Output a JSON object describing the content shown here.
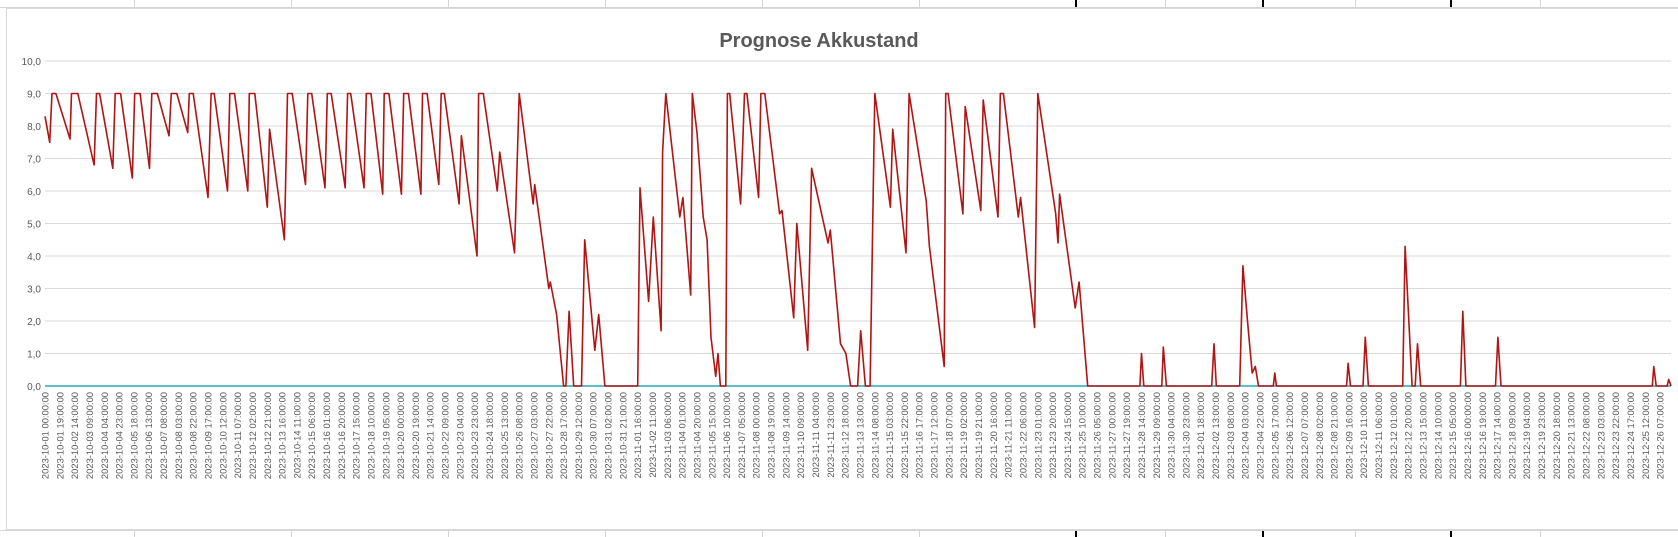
{
  "chart_data": {
    "type": "line",
    "title": "Prognose Akkustand",
    "xlabel": "",
    "ylabel": "",
    "ylim": [
      0,
      10
    ],
    "grid": true,
    "legend": "none",
    "y_ticks": [
      "10,0",
      "9,0",
      "8,0",
      "7,0",
      "6,0",
      "5,0",
      "4,0",
      "3,0",
      "2,0",
      "1,0",
      "0,0"
    ],
    "x_ticks": [
      "2023-10-01 00:00:00",
      "2023-10-01 19:00:00",
      "2023-10-02 14:00:00",
      "2023-10-03 09:00:00",
      "2023-10-04 04:00:00",
      "2023-10-04 23:00:00",
      "2023-10-05 18:00:00",
      "2023-10-06 13:00:00",
      "2023-10-07 08:00:00",
      "2023-10-08 03:00:00",
      "2023-10-08 22:00:00",
      "2023-10-09 17:00:00",
      "2023-10-10 12:00:00",
      "2023-10-11 07:00:00",
      "2023-10-12 02:00:00",
      "2023-10-12 21:00:00",
      "2023-10-13 16:00:00",
      "2023-10-14 11:00:00",
      "2023-10-15 06:00:00",
      "2023-10-16 01:00:00",
      "2023-10-16 20:00:00",
      "2023-10-17 15:00:00",
      "2023-10-18 10:00:00",
      "2023-10-19 05:00:00",
      "2023-10-20 00:00:00",
      "2023-10-20 19:00:00",
      "2023-10-21 14:00:00",
      "2023-10-22 09:00:00",
      "2023-10-23 04:00:00",
      "2023-10-23 23:00:00",
      "2023-10-24 18:00:00",
      "2023-10-25 13:00:00",
      "2023-10-26 08:00:00",
      "2023-10-27 03:00:00",
      "2023-10-27 22:00:00",
      "2023-10-28 17:00:00",
      "2023-10-29 12:00:00",
      "2023-10-30 07:00:00",
      "2023-10-31 02:00:00",
      "2023-10-31 21:00:00",
      "2023-11-01 16:00:00",
      "2023-11-02 11:00:00",
      "2023-11-03 06:00:00",
      "2023-11-04 01:00:00",
      "2023-11-04 20:00:00",
      "2023-11-05 15:00:00",
      "2023-11-06 10:00:00",
      "2023-11-07 05:00:00",
      "2023-11-08 00:00:00",
      "2023-11-08 19:00:00",
      "2023-11-09 14:00:00",
      "2023-11-10 09:00:00",
      "2023-11-11 04:00:00",
      "2023-11-11 23:00:00",
      "2023-11-12 18:00:00",
      "2023-11-13 13:00:00",
      "2023-11-14 08:00:00",
      "2023-11-15 03:00:00",
      "2023-11-15 22:00:00",
      "2023-11-16 17:00:00",
      "2023-11-17 12:00:00",
      "2023-11-18 07:00:00",
      "2023-11-19 02:00:00",
      "2023-11-19 21:00:00",
      "2023-11-20 16:00:00",
      "2023-11-21 11:00:00",
      "2023-11-22 06:00:00",
      "2023-11-23 01:00:00",
      "2023-11-23 20:00:00",
      "2023-11-24 15:00:00",
      "2023-11-25 10:00:00",
      "2023-11-26 05:00:00",
      "2023-11-27 00:00:00",
      "2023-11-27 19:00:00",
      "2023-11-28 14:00:00",
      "2023-11-29 09:00:00",
      "2023-11-30 04:00:00",
      "2023-11-30 23:00:00",
      "2023-12-01 18:00:00",
      "2023-12-02 13:00:00",
      "2023-12-03 08:00:00",
      "2023-12-04 03:00:00",
      "2023-12-04 22:00:00",
      "2023-12-05 17:00:00",
      "2023-12-06 12:00:00",
      "2023-12-07 07:00:00",
      "2023-12-08 02:00:00",
      "2023-12-08 21:00:00",
      "2023-12-09 16:00:00",
      "2023-12-10 11:00:00",
      "2023-12-11 06:00:00",
      "2023-12-12 01:00:00",
      "2023-12-12 20:00:00",
      "2023-12-13 15:00:00",
      "2023-12-14 10:00:00",
      "2023-12-15 05:00:00",
      "2023-12-16 00:00:00",
      "2023-12-16 19:00:00",
      "2023-12-17 14:00:00",
      "2023-12-18 09:00:00",
      "2023-12-19 04:00:00",
      "2023-12-19 23:00:00",
      "2023-12-20 18:00:00",
      "2023-12-21 13:00:00",
      "2023-12-22 08:00:00",
      "2023-12-23 03:00:00",
      "2023-12-23 22:00:00",
      "2023-12-24 17:00:00",
      "2023-12-25 12:00:00",
      "2023-12-26 07:00:00"
    ],
    "x_range": [
      "2023-10-01 00:00:00",
      "2023-12-26 21:00:00"
    ],
    "x_step_hours": 1,
    "series": [
      {
        "color": "#b01414",
        "description_points": [
          [
            "2023-10-01 00:00",
            8.3
          ],
          [
            "2023-10-01 06:00",
            7.5
          ],
          [
            "2023-10-01 09:00",
            9.0
          ],
          [
            "2023-10-01 14:00",
            9.0
          ],
          [
            "2023-10-02 08:00",
            7.6
          ],
          [
            "2023-10-02 10:00",
            9.0
          ],
          [
            "2023-10-02 18:00",
            9.0
          ],
          [
            "2023-10-03 15:00",
            6.8
          ],
          [
            "2023-10-03 18:00",
            9.0
          ],
          [
            "2023-10-03 22:00",
            9.0
          ],
          [
            "2023-10-04 15:00",
            6.7
          ],
          [
            "2023-10-04 18:00",
            9.0
          ],
          [
            "2023-10-05 01:00",
            9.0
          ],
          [
            "2023-10-05 16:00",
            6.4
          ],
          [
            "2023-10-05 19:00",
            9.0
          ],
          [
            "2023-10-06 02:00",
            9.0
          ],
          [
            "2023-10-06 14:00",
            6.7
          ],
          [
            "2023-10-06 17:00",
            9.0
          ],
          [
            "2023-10-07 00:00",
            9.0
          ],
          [
            "2023-10-07 15:00",
            7.7
          ],
          [
            "2023-10-07 18:00",
            9.0
          ],
          [
            "2023-10-08 01:00",
            9.0
          ],
          [
            "2023-10-08 15:00",
            7.8
          ],
          [
            "2023-10-08 17:00",
            9.0
          ],
          [
            "2023-10-08 22:00",
            9.0
          ],
          [
            "2023-10-09 17:00",
            5.8
          ],
          [
            "2023-10-09 21:00",
            9.0
          ],
          [
            "2023-10-10 01:00",
            9.0
          ],
          [
            "2023-10-10 18:00",
            6.0
          ],
          [
            "2023-10-10 21:00",
            9.0
          ],
          [
            "2023-10-11 03:00",
            9.0
          ],
          [
            "2023-10-11 20:00",
            6.0
          ],
          [
            "2023-10-11 22:00",
            9.0
          ],
          [
            "2023-10-12 05:00",
            9.0
          ],
          [
            "2023-10-12 21:00",
            5.5
          ],
          [
            "2023-10-13 00:00",
            7.9
          ],
          [
            "2023-10-13 19:00",
            4.5
          ],
          [
            "2023-10-13 23:00",
            9.0
          ],
          [
            "2023-10-14 05:00",
            9.0
          ],
          [
            "2023-10-14 22:00",
            6.2
          ],
          [
            "2023-10-15 01:00",
            9.0
          ],
          [
            "2023-10-15 06:00",
            9.0
          ],
          [
            "2023-10-15 23:00",
            6.1
          ],
          [
            "2023-10-16 02:00",
            9.0
          ],
          [
            "2023-10-16 07:00",
            9.0
          ],
          [
            "2023-10-17 01:00",
            6.1
          ],
          [
            "2023-10-17 04:00",
            9.0
          ],
          [
            "2023-10-17 08:00",
            9.0
          ],
          [
            "2023-10-18 01:00",
            6.1
          ],
          [
            "2023-10-18 04:00",
            9.0
          ],
          [
            "2023-10-18 10:00",
            9.0
          ],
          [
            "2023-10-19 01:00",
            5.9
          ],
          [
            "2023-10-19 03:00",
            9.0
          ],
          [
            "2023-10-19 09:00",
            9.0
          ],
          [
            "2023-10-20 01:00",
            5.9
          ],
          [
            "2023-10-20 04:00",
            9.0
          ],
          [
            "2023-10-20 10:00",
            9.0
          ],
          [
            "2023-10-21 02:00",
            5.9
          ],
          [
            "2023-10-21 04:00",
            9.0
          ],
          [
            "2023-10-21 10:00",
            9.0
          ],
          [
            "2023-10-22 01:00",
            6.2
          ],
          [
            "2023-10-22 04:00",
            9.0
          ],
          [
            "2023-10-22 08:00",
            9.0
          ],
          [
            "2023-10-23 03:00",
            5.6
          ],
          [
            "2023-10-23 06:00",
            7.7
          ],
          [
            "2023-10-24 02:00",
            4.0
          ],
          [
            "2023-10-24 04:00",
            9.0
          ],
          [
            "2023-10-24 10:00",
            9.0
          ],
          [
            "2023-10-25 04:00",
            6.0
          ],
          [
            "2023-10-25 07:00",
            7.2
          ],
          [
            "2023-10-26 02:00",
            4.1
          ],
          [
            "2023-10-26 08:00",
            9.0
          ],
          [
            "2023-10-27 02:00",
            5.6
          ],
          [
            "2023-10-27 04:00",
            6.2
          ],
          [
            "2023-10-27 22:00",
            3.0
          ],
          [
            "2023-10-28 00:00",
            3.2
          ],
          [
            "2023-10-28 08:00",
            2.2
          ],
          [
            "2023-10-28 17:00",
            0.0
          ],
          [
            "2023-10-28 20:00",
            0.0
          ],
          [
            "2023-10-29 00:00",
            2.3
          ],
          [
            "2023-10-29 06:00",
            0.0
          ],
          [
            "2023-10-29 16:00",
            0.0
          ],
          [
            "2023-10-29 20:00",
            4.5
          ],
          [
            "2023-10-30 09:00",
            1.1
          ],
          [
            "2023-10-30 14:00",
            2.2
          ],
          [
            "2023-10-30 22:00",
            0.0
          ],
          [
            "2023-10-31 00:00",
            0.0
          ],
          [
            "2023-11-01 16:00",
            0.0
          ],
          [
            "2023-11-01 19:00",
            6.1
          ],
          [
            "2023-11-02 06:00",
            2.6
          ],
          [
            "2023-11-02 12:00",
            5.2
          ],
          [
            "2023-11-02 22:00",
            1.7
          ],
          [
            "2023-11-03 00:00",
            7.2
          ],
          [
            "2023-11-03 04:00",
            9.0
          ],
          [
            "2023-11-03 22:00",
            5.2
          ],
          [
            "2023-11-04 02:00",
            5.8
          ],
          [
            "2023-11-04 12:00",
            2.8
          ],
          [
            "2023-11-04 14:00",
            9.0
          ],
          [
            "2023-11-04 20:00",
            7.8
          ],
          [
            "2023-11-05 04:00",
            5.2
          ],
          [
            "2023-11-05 09:00",
            4.5
          ],
          [
            "2023-11-05 14:00",
            1.5
          ],
          [
            "2023-11-05 20:00",
            0.3
          ],
          [
            "2023-11-05 23:00",
            1.0
          ],
          [
            "2023-11-06 02:00",
            0.0
          ],
          [
            "2023-11-06 09:00",
            0.0
          ],
          [
            "2023-11-06 11:00",
            9.0
          ],
          [
            "2023-11-06 14:00",
            9.0
          ],
          [
            "2023-11-07 04:00",
            5.6
          ],
          [
            "2023-11-07 09:00",
            9.0
          ],
          [
            "2023-11-07 12:00",
            9.0
          ],
          [
            "2023-11-08 03:00",
            5.8
          ],
          [
            "2023-11-08 06:00",
            9.0
          ],
          [
            "2023-11-08 11:00",
            9.0
          ],
          [
            "2023-11-09 06:00",
            5.3
          ],
          [
            "2023-11-09 09:00",
            5.4
          ],
          [
            "2023-11-10 00:00",
            2.1
          ],
          [
            "2023-11-10 04:00",
            5.0
          ],
          [
            "2023-11-10 18:00",
            1.1
          ],
          [
            "2023-11-10 23:00",
            6.7
          ],
          [
            "2023-11-11 20:00",
            4.4
          ],
          [
            "2023-11-11 23:00",
            4.8
          ],
          [
            "2023-11-12 12:00",
            1.3
          ],
          [
            "2023-11-12 19:00",
            1.0
          ],
          [
            "2023-11-13 01:00",
            0.0
          ],
          [
            "2023-11-13 10:00",
            0.0
          ],
          [
            "2023-11-13 14:00",
            1.7
          ],
          [
            "2023-11-13 20:00",
            0.0
          ],
          [
            "2023-11-14 02:00",
            0.0
          ],
          [
            "2023-11-14 08:00",
            9.0
          ],
          [
            "2023-11-15 04:00",
            5.5
          ],
          [
            "2023-11-15 07:00",
            7.9
          ],
          [
            "2023-11-16 00:00",
            4.1
          ],
          [
            "2023-11-16 04:00",
            9.0
          ],
          [
            "2023-11-17 02:00",
            5.7
          ],
          [
            "2023-11-17 06:00",
            4.3
          ],
          [
            "2023-11-18 01:00",
            0.6
          ],
          [
            "2023-11-18 03:00",
            9.0
          ],
          [
            "2023-11-18 06:00",
            9.0
          ],
          [
            "2023-11-19 01:00",
            5.3
          ],
          [
            "2023-11-19 04:00",
            8.6
          ],
          [
            "2023-11-20 00:00",
            5.4
          ],
          [
            "2023-11-20 03:00",
            8.8
          ],
          [
            "2023-11-20 22:00",
            5.2
          ],
          [
            "2023-11-21 01:00",
            9.0
          ],
          [
            "2023-11-21 05:00",
            9.0
          ],
          [
            "2023-11-22 00:00",
            5.2
          ],
          [
            "2023-11-22 03:00",
            5.8
          ],
          [
            "2023-11-22 21:00",
            1.8
          ],
          [
            "2023-11-23 01:00",
            9.0
          ],
          [
            "2023-11-24 00:00",
            5.3
          ],
          [
            "2023-11-24 03:00",
            4.4
          ],
          [
            "2023-11-24 05:00",
            5.9
          ],
          [
            "2023-11-25 01:00",
            2.4
          ],
          [
            "2023-11-25 06:00",
            3.2
          ],
          [
            "2023-11-25 17:00",
            0.0
          ],
          [
            "2023-11-28 12:00",
            0.0
          ],
          [
            "2023-11-28 14:00",
            1.0
          ],
          [
            "2023-11-28 17:00",
            0.0
          ],
          [
            "2023-11-29 16:00",
            0.0
          ],
          [
            "2023-11-29 18:00",
            1.2
          ],
          [
            "2023-11-29 22:00",
            0.0
          ],
          [
            "2023-12-02 08:00",
            0.0
          ],
          [
            "2023-12-02 11:00",
            1.3
          ],
          [
            "2023-12-02 14:00",
            0.0
          ],
          [
            "2023-12-03 20:00",
            0.0
          ],
          [
            "2023-12-04 00:00",
            3.7
          ],
          [
            "2023-12-04 06:00",
            2.0
          ],
          [
            "2023-12-04 12:00",
            0.4
          ],
          [
            "2023-12-04 16:00",
            0.6
          ],
          [
            "2023-12-04 20:00",
            0.0
          ],
          [
            "2023-12-05 15:00",
            0.0
          ],
          [
            "2023-12-05 17:00",
            0.4
          ],
          [
            "2023-12-05 19:00",
            0.0
          ],
          [
            "2023-12-09 13:00",
            0.0
          ],
          [
            "2023-12-09 15:00",
            0.7
          ],
          [
            "2023-12-09 18:00",
            0.0
          ],
          [
            "2023-12-10 10:00",
            0.0
          ],
          [
            "2023-12-10 13:00",
            1.5
          ],
          [
            "2023-12-10 17:00",
            0.0
          ],
          [
            "2023-12-12 13:00",
            0.0
          ],
          [
            "2023-12-12 16:00",
            4.3
          ],
          [
            "2023-12-12 21:00",
            1.9
          ],
          [
            "2023-12-13 01:00",
            0.0
          ],
          [
            "2023-12-13 05:00",
            0.0
          ],
          [
            "2023-12-13 08:00",
            1.3
          ],
          [
            "2023-12-13 12:00",
            0.0
          ],
          [
            "2023-12-15 15:00",
            0.0
          ],
          [
            "2023-12-15 18:00",
            2.3
          ],
          [
            "2023-12-15 22:00",
            0.0
          ],
          [
            "2023-12-17 12:00",
            0.0
          ],
          [
            "2023-12-17 15:00",
            1.5
          ],
          [
            "2023-12-17 19:00",
            0.0
          ],
          [
            "2023-12-25 21:00",
            0.0
          ],
          [
            "2023-12-25 23:00",
            0.6
          ],
          [
            "2023-12-26 02:00",
            0.0
          ],
          [
            "2023-12-26 16:00",
            0.0
          ],
          [
            "2023-12-26 18:00",
            0.2
          ],
          [
            "2023-12-26 21:00",
            0.0
          ]
        ]
      },
      {
        "color": "#2aa7b7",
        "description_points": [
          [
            "2023-10-01 00:00",
            0.0
          ],
          [
            "2023-12-26 21:00",
            0.0
          ]
        ]
      }
    ]
  }
}
